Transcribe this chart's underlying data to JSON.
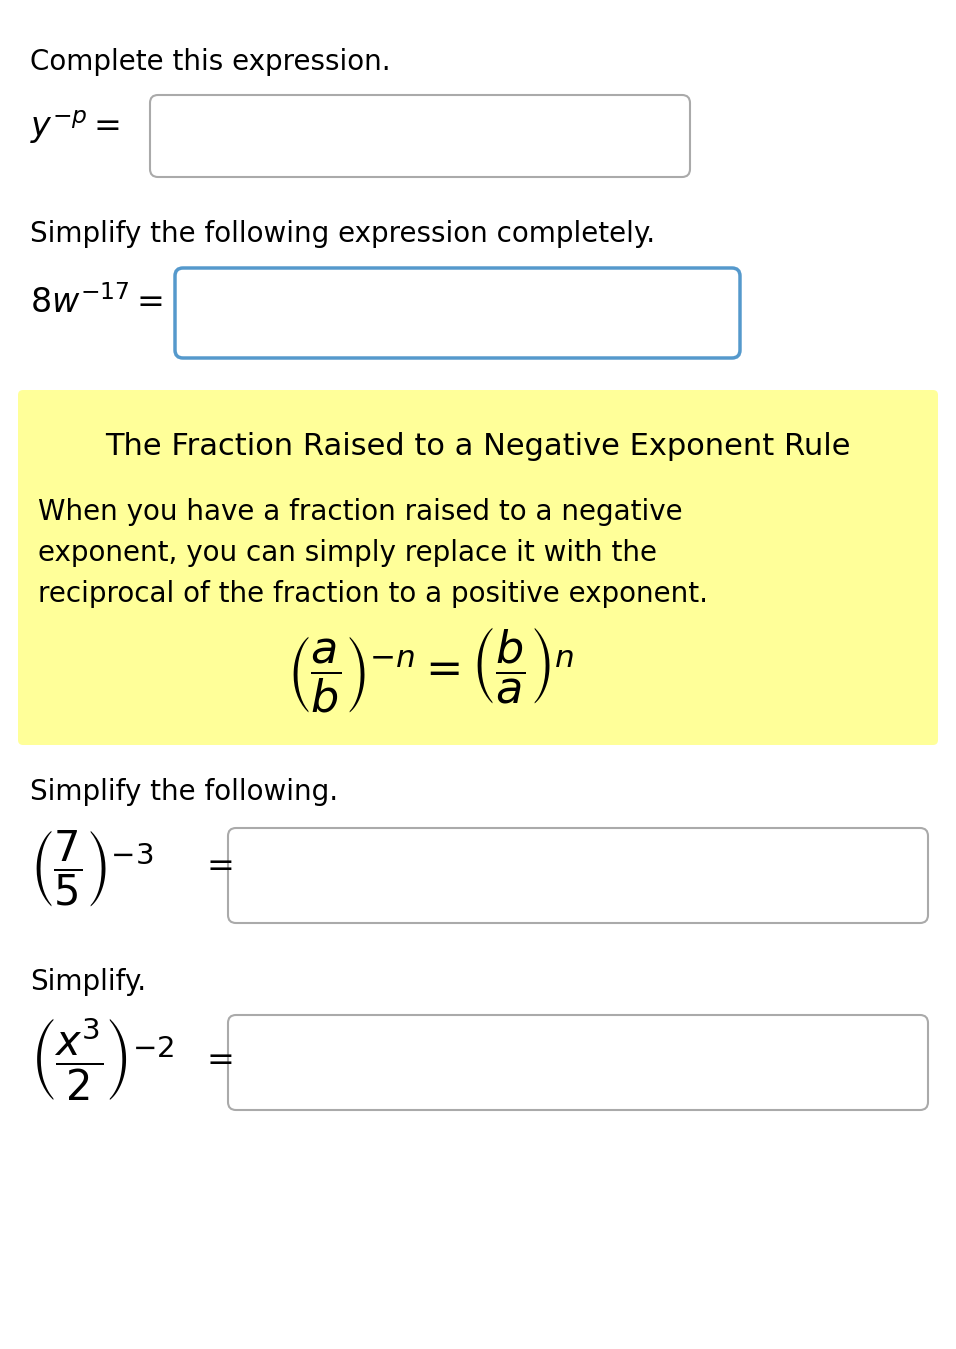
{
  "bg_color": "#ffffff",
  "yellow_bg": "#ffff99",
  "box1_border": "#aaaaaa",
  "box2_border": "#5599cc",
  "box3_border": "#aaaaaa",
  "box4_border": "#aaaaaa",
  "section1_label": "Complete this expression.",
  "section1_expr": "$y^{-p}=$",
  "section2_label": "Simplify the following expression completely.",
  "section2_expr": "$8w^{-17} =$",
  "yellow_title": "The Fraction Raised to a Negative Exponent Rule",
  "yellow_body": "When you have a fraction raised to a negative\nexponent, you can simply replace it with the\nreciprocal of the fraction to a positive exponent.",
  "yellow_formula": "$\\left(\\dfrac{a}{b}\\right)^{-n} = \\left(\\dfrac{b}{a}\\right)^{n}$",
  "section3_label": "Simplify the following.",
  "section3_expr": "$\\left(\\dfrac{7}{5}\\right)^{-3}$",
  "section4_label": "Simplify.",
  "section4_expr": "$\\left(\\dfrac{x^3}{2}\\right)^{-2}$",
  "font_size_label": 20,
  "font_size_expr": 24,
  "font_size_yellow_title": 22,
  "font_size_yellow_body": 20,
  "font_size_yellow_formula": 32
}
